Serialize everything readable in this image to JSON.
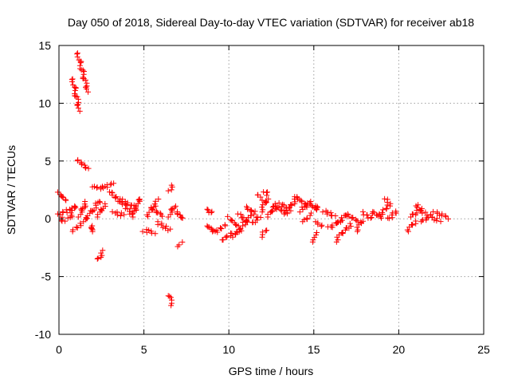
{
  "chart_data": {
    "type": "scatter",
    "title": "Day 050 of 2018, Sidereal Day-to-day VTEC variation (SDTVAR) for receiver ab18",
    "xlabel": "GPS time / hours",
    "ylabel": "SDTVAR / TECUs",
    "xlim": [
      0,
      25
    ],
    "ylim": [
      -10,
      15
    ],
    "xticks": [
      0,
      5,
      10,
      15,
      20,
      25
    ],
    "yticks": [
      -10,
      -5,
      0,
      5,
      10,
      15
    ],
    "grid": true,
    "marker": "+",
    "color": "#ff0000",
    "series": [
      {
        "name": "SDTVAR",
        "segments": [
          {
            "from": [
              0.0,
              2.2
            ],
            "to": [
              0.4,
              1.6
            ]
          },
          {
            "from": [
              0.0,
              0.4
            ],
            "to": [
              0.3,
              -0.3
            ]
          },
          {
            "from": [
              0.2,
              0.5
            ],
            "to": [
              0.8,
              0.9
            ]
          },
          {
            "from": [
              0.6,
              0.0
            ],
            "to": [
              1.0,
              1.2
            ]
          },
          {
            "from": [
              0.8,
              -1.0
            ],
            "to": [
              1.3,
              -0.5
            ]
          },
          {
            "from": [
              0.8,
              12.1
            ],
            "to": [
              1.2,
              9.4
            ]
          },
          {
            "from": [
              1.1,
              14.3
            ],
            "to": [
              1.7,
              11.0
            ]
          },
          {
            "from": [
              1.1,
              5.1
            ],
            "to": [
              1.7,
              4.3
            ]
          },
          {
            "from": [
              1.2,
              0.2
            ],
            "to": [
              1.6,
              1.5
            ]
          },
          {
            "from": [
              1.5,
              -0.3
            ],
            "to": [
              1.8,
              0.6
            ]
          },
          {
            "from": [
              1.9,
              -1.2
            ],
            "to": [
              2.0,
              -0.5
            ]
          },
          {
            "from": [
              1.9,
              0.5
            ],
            "to": [
              2.4,
              1.6
            ]
          },
          {
            "from": [
              2.0,
              2.8
            ],
            "to": [
              2.6,
              2.6
            ]
          },
          {
            "from": [
              2.3,
              0.2
            ],
            "to": [
              2.7,
              1.3
            ]
          },
          {
            "from": [
              2.3,
              -3.5
            ],
            "to": [
              2.6,
              -2.8
            ]
          },
          {
            "from": [
              2.6,
              2.7
            ],
            "to": [
              3.2,
              3.1
            ]
          },
          {
            "from": [
              3.0,
              2.4
            ],
            "to": [
              3.6,
              1.4
            ]
          },
          {
            "from": [
              3.2,
              0.6
            ],
            "to": [
              3.8,
              0.3
            ]
          },
          {
            "from": [
              3.6,
              1.7
            ],
            "to": [
              4.3,
              0.4
            ]
          },
          {
            "from": [
              3.9,
              1.4
            ],
            "to": [
              4.6,
              1.0
            ]
          },
          {
            "from": [
              4.3,
              0.2
            ],
            "to": [
              4.8,
              1.8
            ]
          },
          {
            "from": [
              5.0,
              -1.0
            ],
            "to": [
              5.6,
              -1.2
            ]
          },
          {
            "from": [
              5.2,
              0.3
            ],
            "to": [
              5.8,
              1.6
            ]
          },
          {
            "from": [
              5.5,
              0.8
            ],
            "to": [
              6.1,
              0.3
            ]
          },
          {
            "from": [
              5.8,
              -0.3
            ],
            "to": [
              6.5,
              -1.0
            ]
          },
          {
            "from": [
              6.5,
              2.5
            ],
            "to": [
              6.7,
              2.8
            ]
          },
          {
            "from": [
              6.5,
              -6.6
            ],
            "to": [
              6.6,
              -7.4
            ]
          },
          {
            "from": [
              6.5,
              0.2
            ],
            "to": [
              6.8,
              1.2
            ]
          },
          {
            "from": [
              7.0,
              -2.3
            ],
            "to": [
              7.2,
              -2.1
            ]
          },
          {
            "from": [
              6.9,
              0.6
            ],
            "to": [
              7.3,
              0.0
            ]
          },
          {
            "from": [
              8.7,
              0.8
            ],
            "to": [
              9.0,
              0.5
            ]
          },
          {
            "from": [
              8.7,
              -0.6
            ],
            "to": [
              9.1,
              -1.0
            ]
          },
          {
            "from": [
              9.1,
              -1.2
            ],
            "to": [
              9.8,
              -0.6
            ]
          },
          {
            "from": [
              9.6,
              -1.8
            ],
            "to": [
              10.3,
              -1.2
            ]
          },
          {
            "from": [
              10.0,
              0.1
            ],
            "to": [
              10.7,
              -0.9
            ]
          },
          {
            "from": [
              10.3,
              -1.5
            ],
            "to": [
              10.9,
              -0.6
            ]
          },
          {
            "from": [
              10.6,
              0.4
            ],
            "to": [
              11.1,
              -0.3
            ]
          },
          {
            "from": [
              10.9,
              -0.4
            ],
            "to": [
              11.5,
              0.6
            ]
          },
          {
            "from": [
              11.0,
              1.0
            ],
            "to": [
              11.4,
              0.6
            ]
          },
          {
            "from": [
              11.4,
              -0.4
            ],
            "to": [
              11.8,
              0.2
            ]
          },
          {
            "from": [
              11.7,
              2.1
            ],
            "to": [
              11.9,
              1.7
            ]
          },
          {
            "from": [
              11.9,
              -1.5
            ],
            "to": [
              12.2,
              -1.0
            ]
          },
          {
            "from": [
              11.9,
              0.7
            ],
            "to": [
              12.3,
              1.8
            ]
          },
          {
            "from": [
              12.1,
              2.4
            ],
            "to": [
              12.3,
              2.1
            ]
          },
          {
            "from": [
              12.3,
              0.2
            ],
            "to": [
              12.8,
              1.2
            ]
          },
          {
            "from": [
              12.6,
              1.1
            ],
            "to": [
              13.3,
              0.6
            ]
          },
          {
            "from": [
              13.0,
              1.3
            ],
            "to": [
              13.6,
              0.8
            ]
          },
          {
            "from": [
              13.3,
              0.4
            ],
            "to": [
              14.0,
              1.8
            ]
          },
          {
            "from": [
              13.9,
              1.9
            ],
            "to": [
              14.5,
              1.3
            ]
          },
          {
            "from": [
              14.2,
              0.7
            ],
            "to": [
              14.8,
              1.4
            ]
          },
          {
            "from": [
              14.4,
              -0.3
            ],
            "to": [
              14.8,
              0.4
            ]
          },
          {
            "from": [
              14.7,
              1.3
            ],
            "to": [
              15.2,
              0.8
            ]
          },
          {
            "from": [
              15.0,
              -1.9
            ],
            "to": [
              15.1,
              -1.3
            ]
          },
          {
            "from": [
              15.1,
              1.2
            ],
            "to": [
              15.2,
              0.7
            ]
          },
          {
            "from": [
              15.1,
              -0.3
            ],
            "to": [
              15.5,
              -0.6
            ]
          },
          {
            "from": [
              15.6,
              0.7
            ],
            "to": [
              16.2,
              0.2
            ]
          },
          {
            "from": [
              15.9,
              -0.8
            ],
            "to": [
              16.5,
              -0.2
            ]
          },
          {
            "from": [
              16.3,
              -1.9
            ],
            "to": [
              16.5,
              -1.5
            ]
          },
          {
            "from": [
              16.4,
              -0.4
            ],
            "to": [
              17.0,
              0.5
            ]
          },
          {
            "from": [
              16.6,
              -1.3
            ],
            "to": [
              17.2,
              -0.5
            ]
          },
          {
            "from": [
              17.0,
              0.3
            ],
            "to": [
              17.6,
              -0.2
            ]
          },
          {
            "from": [
              17.5,
              -1.0
            ],
            "to": [
              17.9,
              -0.1
            ]
          },
          {
            "from": [
              17.9,
              0.5
            ],
            "to": [
              18.4,
              0.0
            ]
          },
          {
            "from": [
              18.4,
              0.6
            ],
            "to": [
              19.0,
              0.1
            ]
          },
          {
            "from": [
              18.9,
              0.4
            ],
            "to": [
              19.5,
              1.2
            ]
          },
          {
            "from": [
              19.2,
              1.7
            ],
            "to": [
              19.4,
              1.3
            ]
          },
          {
            "from": [
              19.4,
              0.0
            ],
            "to": [
              19.9,
              0.7
            ]
          },
          {
            "from": [
              20.5,
              -1.0
            ],
            "to": [
              21.0,
              -0.2
            ]
          },
          {
            "from": [
              20.7,
              0.2
            ],
            "to": [
              21.3,
              0.8
            ]
          },
          {
            "from": [
              21.0,
              1.2
            ],
            "to": [
              21.5,
              0.5
            ]
          },
          {
            "from": [
              21.3,
              -0.3
            ],
            "to": [
              21.9,
              0.4
            ]
          },
          {
            "from": [
              21.8,
              0.2
            ],
            "to": [
              22.4,
              -0.2
            ]
          },
          {
            "from": [
              22.1,
              0.6
            ],
            "to": [
              22.9,
              0.1
            ]
          }
        ]
      }
    ]
  }
}
